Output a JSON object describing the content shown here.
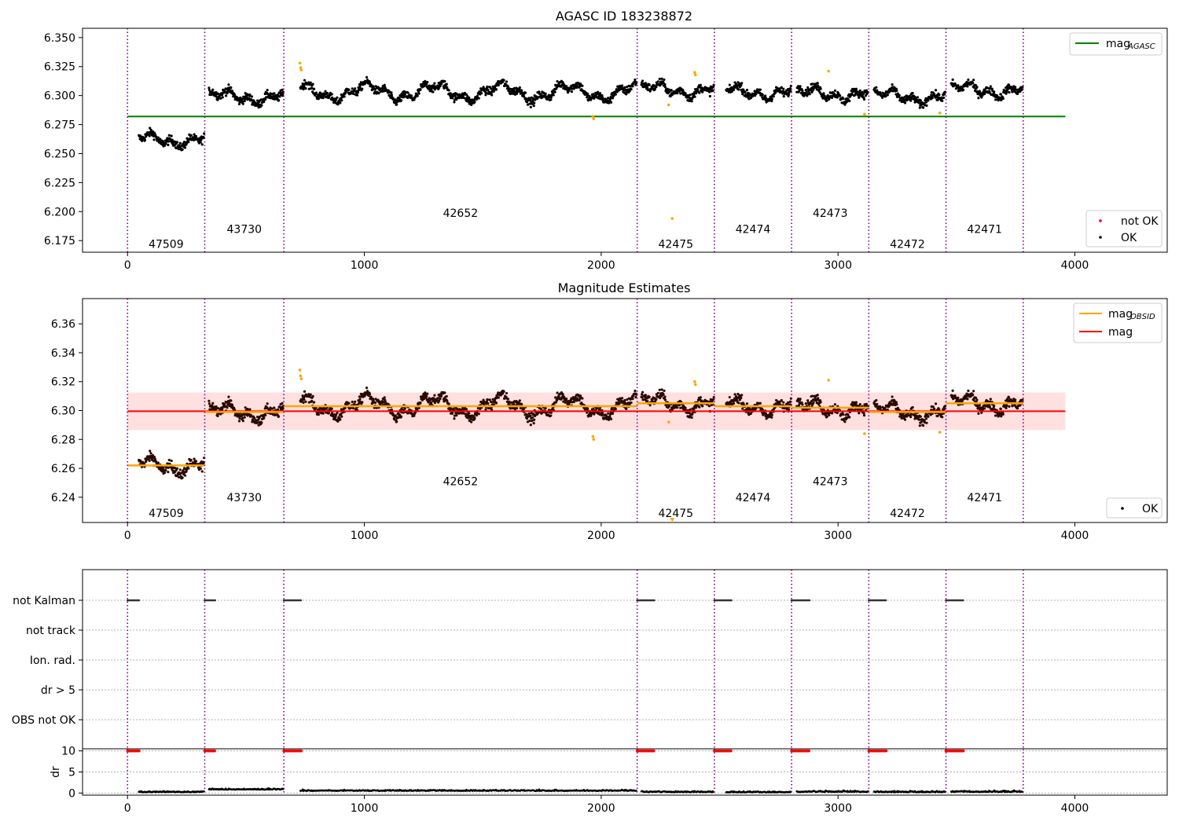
{
  "chart_data": [
    {
      "type": "scatter",
      "title": "AGASC ID 183238872",
      "xlim": [
        -190,
        4390
      ],
      "ylim": [
        6.165,
        6.358
      ],
      "xticks": [
        0,
        1000,
        2000,
        3000,
        4000
      ],
      "yticks": [
        6.175,
        6.2,
        6.225,
        6.25,
        6.275,
        6.3,
        6.325,
        6.35
      ],
      "ytick_labels": [
        "6.175",
        "6.200",
        "6.225",
        "6.250",
        "6.275",
        "6.300",
        "6.325",
        "6.350"
      ],
      "mag_agasc": 6.282,
      "mag_agasc_range": [
        0,
        3960
      ],
      "legend_upper": [
        {
          "label": "mag",
          "sub": "AGASC",
          "color": "#008000"
        }
      ],
      "legend_lower": [
        {
          "label": "not OK",
          "color": "#ff0000"
        },
        {
          "label": "OK",
          "color": "#000000"
        }
      ],
      "obsids": [
        {
          "id": "47509",
          "start": 0,
          "end": 326,
          "mag": 6.262,
          "label_y": 6.172
        },
        {
          "id": "43730",
          "start": 326,
          "end": 660,
          "mag": 6.299,
          "label_y": 6.185
        },
        {
          "id": "42652",
          "start": 660,
          "end": 2152,
          "mag": 6.303,
          "label_y": 6.199
        },
        {
          "id": "42475",
          "start": 2152,
          "end": 2478,
          "mag": 6.305,
          "label_y": 6.172
        },
        {
          "id": "42474",
          "start": 2478,
          "end": 2804,
          "mag": 6.303,
          "label_y": 6.185
        },
        {
          "id": "42473",
          "start": 2804,
          "end": 3130,
          "mag": 6.302,
          "label_y": 6.199
        },
        {
          "id": "42472",
          "start": 3130,
          "end": 3456,
          "mag": 6.299,
          "label_y": 6.172
        },
        {
          "id": "42471",
          "start": 3456,
          "end": 3782,
          "mag": 6.305,
          "label_y": 6.185
        }
      ],
      "outliers": [
        [
          728,
          6.328
        ],
        [
          731,
          6.324
        ],
        [
          734,
          6.322
        ],
        [
          1965,
          6.282
        ],
        [
          1968,
          6.28
        ],
        [
          2285,
          6.292
        ],
        [
          2300,
          6.194
        ],
        [
          2395,
          6.32
        ],
        [
          2398,
          6.318
        ],
        [
          2960,
          6.321
        ],
        [
          3112,
          6.284
        ],
        [
          3430,
          6.285
        ]
      ]
    },
    {
      "type": "scatter",
      "title": "Magnitude Estimates",
      "xlim": [
        -190,
        4390
      ],
      "ylim": [
        6.2225,
        6.3775
      ],
      "xticks": [
        0,
        1000,
        2000,
        3000,
        4000
      ],
      "yticks": [
        6.24,
        6.26,
        6.28,
        6.3,
        6.32,
        6.34,
        6.36
      ],
      "ytick_labels": [
        "6.24",
        "6.26",
        "6.28",
        "6.30",
        "6.32",
        "6.34",
        "6.36"
      ],
      "mag": 6.2995,
      "mag_band": [
        6.2865,
        6.3125
      ],
      "mag_range": [
        0,
        3960
      ],
      "legend_upper": [
        {
          "label": "mag",
          "sub": "OBSID",
          "color": "#ffa500"
        },
        {
          "label": "mag",
          "sub": "",
          "color": "#ff0000"
        }
      ],
      "legend_lower": [
        {
          "label": "OK",
          "color": "#000000"
        }
      ],
      "obs_label_y": {
        "47509": 6.229,
        "43730": 6.24,
        "42652": 6.251,
        "42475": 6.229,
        "42474": 6.24,
        "42473": 6.251,
        "42472": 6.229,
        "42471": 6.24
      },
      "outliers": [
        [
          728,
          6.328
        ],
        [
          731,
          6.324
        ],
        [
          734,
          6.322
        ],
        [
          1965,
          6.282
        ],
        [
          1968,
          6.28
        ],
        [
          2285,
          6.292
        ],
        [
          2395,
          6.32
        ],
        [
          2398,
          6.318
        ],
        [
          2960,
          6.321
        ],
        [
          3112,
          6.284
        ],
        [
          3430,
          6.285
        ]
      ],
      "offscale_marker": [
        2300,
        6.223
      ]
    },
    {
      "type": "scatter",
      "title": "",
      "xlim": [
        -190,
        4390
      ],
      "categories": [
        "not Kalman",
        "not track",
        "Ion. rad.",
        "dr > 5",
        "OBS not OK"
      ],
      "flag_segments": [
        [
          0,
          50
        ],
        [
          326,
          370
        ],
        [
          660,
          735
        ],
        [
          2152,
          2225
        ],
        [
          2478,
          2550
        ],
        [
          2804,
          2880
        ],
        [
          3130,
          3205
        ],
        [
          3456,
          3530
        ]
      ],
      "flag_series": "not Kalman"
    },
    {
      "type": "scatter",
      "title": "",
      "ylabel": "dr",
      "xlim": [
        -190,
        4390
      ],
      "ylim": [
        -0.5,
        10.5
      ],
      "yticks": [
        0,
        5,
        10
      ],
      "xticks": [
        0,
        1000,
        2000,
        3000,
        4000
      ],
      "dr_high_value": 10,
      "dr_levels": [
        0.2,
        0.8,
        0.5,
        0.2,
        0.15,
        0.25,
        0.2,
        0.25
      ]
    }
  ]
}
